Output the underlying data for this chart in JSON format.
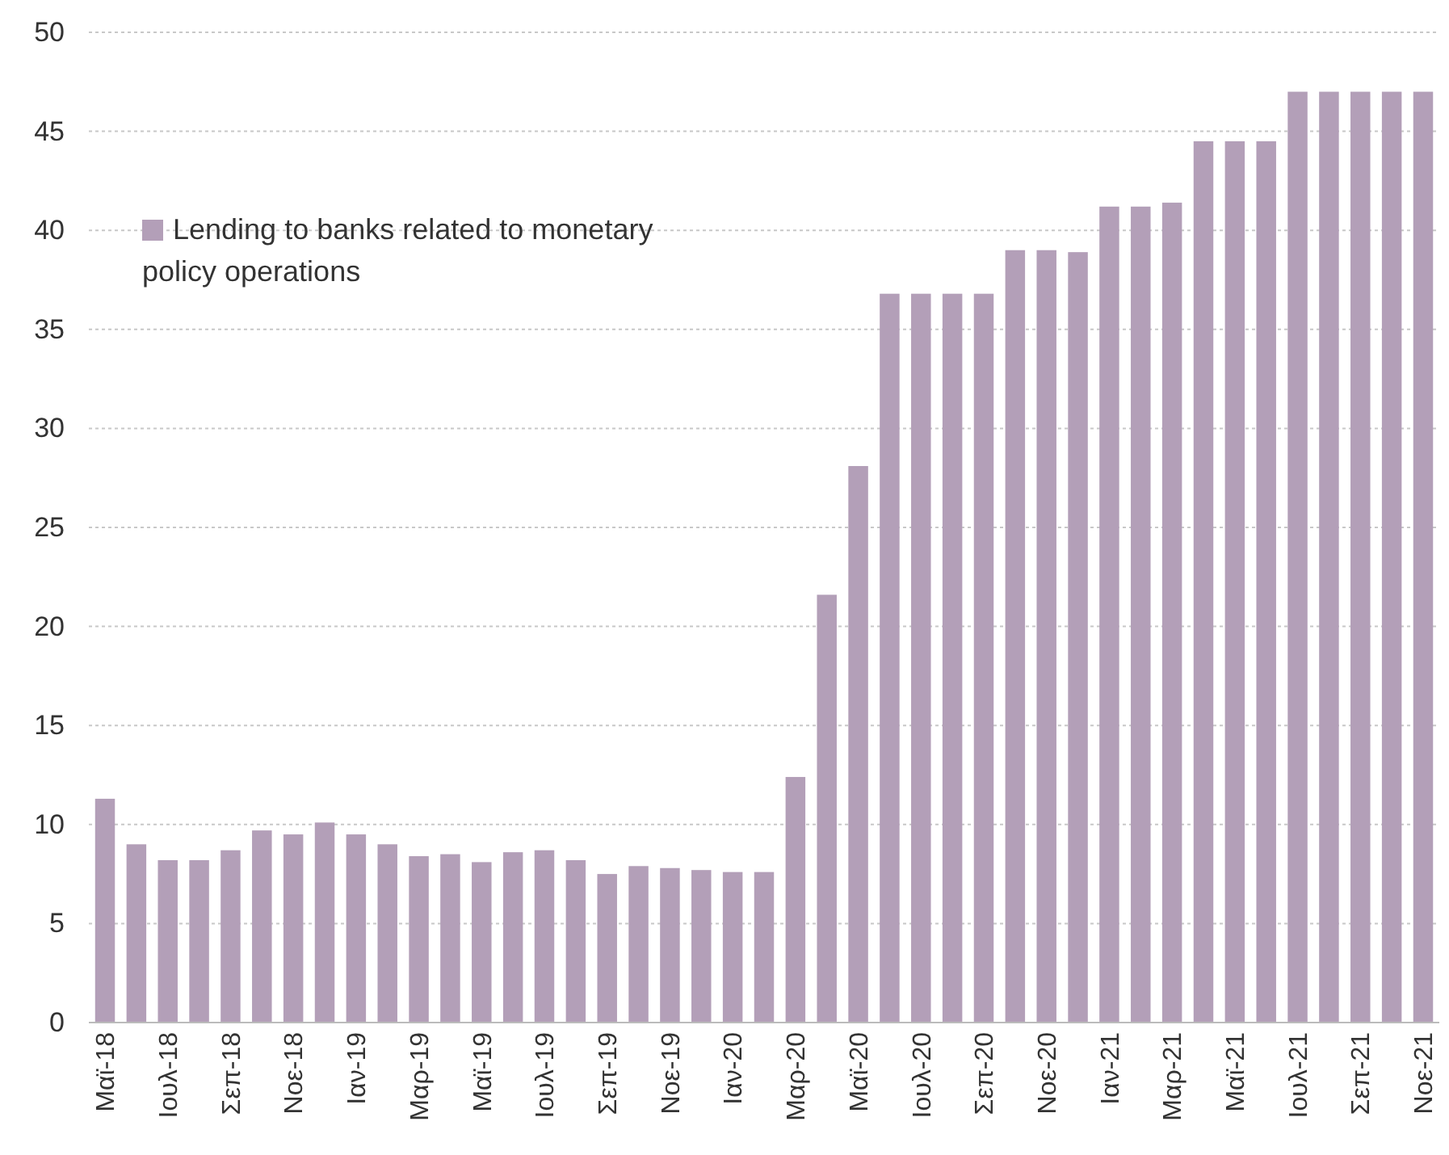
{
  "chart_data": {
    "type": "bar",
    "categories": [
      "Μαϊ-18",
      null,
      "Ιουλ-18",
      null,
      "Σεπ-18",
      null,
      "Νοε-18",
      null,
      "Ιαν-19",
      null,
      "Μαρ-19",
      null,
      "Μαϊ-19",
      null,
      "Ιουλ-19",
      null,
      "Σεπ-19",
      null,
      "Νοε-19",
      null,
      "Ιαν-20",
      null,
      "Μαρ-20",
      null,
      "Μαϊ-20",
      null,
      "Ιουλ-20",
      null,
      "Σεπ-20",
      null,
      "Νοε-20",
      null,
      "Ιαν-21",
      null,
      "Μαρ-21",
      null,
      "Μαϊ-21",
      null,
      "Ιουλ-21",
      null,
      "Σεπ-21",
      null,
      "Νοε-21"
    ],
    "series": [
      {
        "name": "Lending to banks related to monetary policy operations",
        "color": "#b39fb8",
        "values": [
          11.3,
          9.0,
          8.2,
          8.2,
          8.7,
          9.7,
          9.5,
          10.1,
          9.5,
          9.0,
          8.4,
          8.5,
          8.1,
          8.6,
          8.7,
          8.2,
          7.5,
          7.9,
          7.8,
          7.7,
          7.6,
          7.6,
          12.4,
          21.6,
          28.1,
          36.8,
          36.8,
          36.8,
          36.8,
          39.0,
          39.0,
          38.9,
          41.2,
          41.2,
          41.4,
          44.5,
          44.5,
          44.5,
          47.0,
          47.0,
          47.0,
          47.0,
          47.0
        ]
      }
    ],
    "ylim": [
      0,
      50
    ],
    "yticks": [
      0,
      5,
      10,
      15,
      20,
      25,
      30,
      35,
      40,
      45,
      50
    ],
    "grid": "y",
    "legend": "top left"
  }
}
